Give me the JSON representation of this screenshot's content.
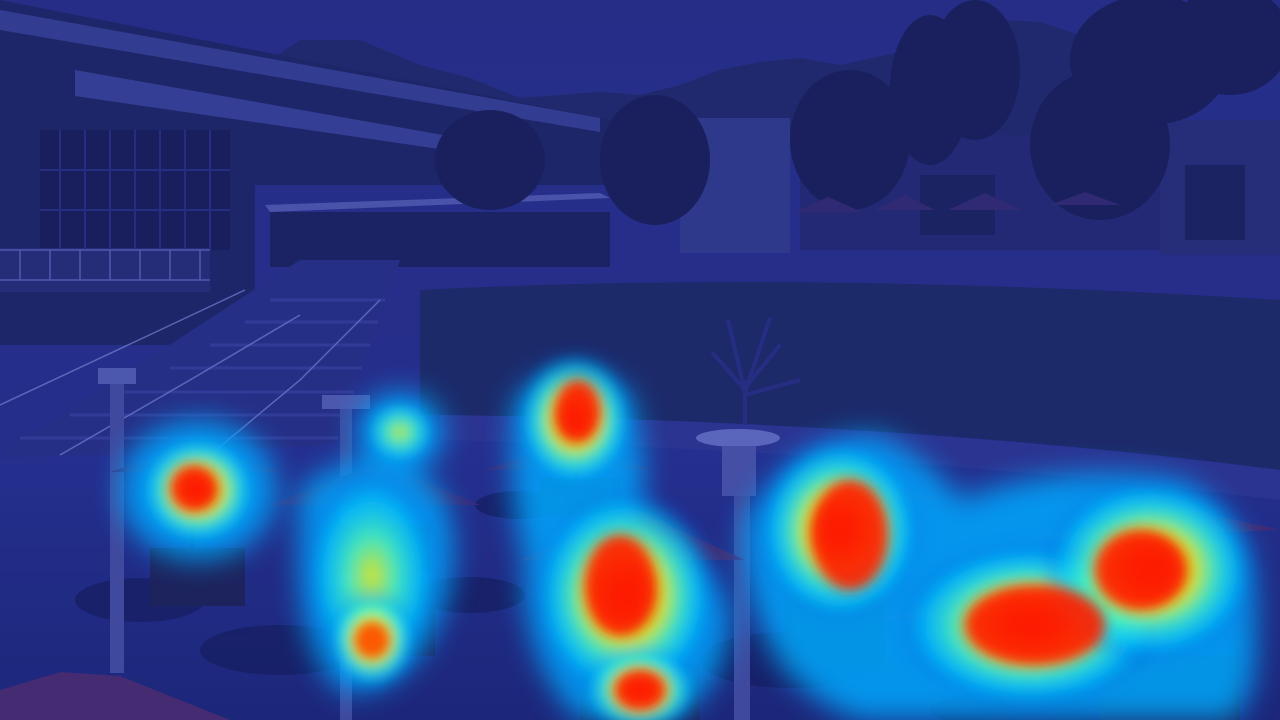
{
  "image": {
    "kind": "saliency-heatmap-overlay",
    "overlay_tint": "#1e2a8a",
    "colormap": [
      "#1a2bd0",
      "#00c8ff",
      "#57ffb0",
      "#ffee00",
      "#ff3a00",
      "#ff0000"
    ]
  }
}
